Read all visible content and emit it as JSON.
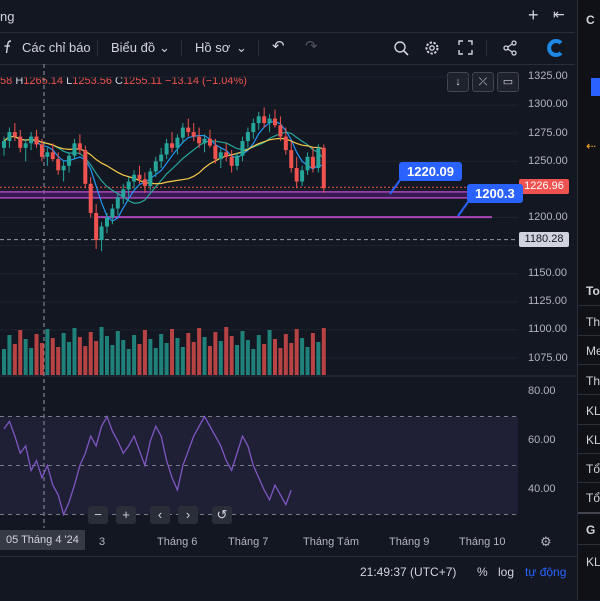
{
  "topbar": {
    "title": "ng",
    "plus_label": "+",
    "expand_label": "⇤"
  },
  "toolbar": {
    "indicators_label": "Các chỉ báo",
    "chart_label": "Biểu đồ",
    "profile_label": "Hồ sơ",
    "fx_icon": "fx-icon",
    "undo_icon": "undo-icon",
    "redo_icon": "redo-icon",
    "search_icon": "zoom-icon",
    "settings_icon": "gear-icon",
    "fullscreen_icon": "fullscreen-icon",
    "share_icon": "share-icon",
    "logo_icon": "brand-logo-icon"
  },
  "ohlc": {
    "o_val": "58",
    "h_key": "H",
    "h_val": "1265.14",
    "l_key": "L",
    "l_val": "1253.56",
    "c_key": "C",
    "c_val": "1255.11",
    "change": "−13.14 (−1.04%)"
  },
  "price_axis": [
    "1325.00",
    "1300.00",
    "1275.00",
    "1250.00",
    "1200.00",
    "1150.00",
    "1125.00",
    "1100.00",
    "1075.00"
  ],
  "last_price": "1226.96",
  "crosshair_price": "1180.28",
  "callouts": {
    "upper": "1220.09",
    "lower": "1200.3"
  },
  "rsi_axis": [
    "80.00",
    "60.00",
    "40.00"
  ],
  "x_axis": {
    "cursor_date": "05 Tháng 4 '24",
    "m3": "3",
    "m6": "Tháng 6",
    "m7": "Tháng 7",
    "m8": "Tháng Tám",
    "m9": "Tháng 9",
    "m10": "Tháng 10"
  },
  "nav": {
    "minus": "−",
    "plus": "+",
    "left": "‹",
    "right": "›",
    "reset": "↺"
  },
  "bottom": {
    "time": "21:49:37 (UTC+7)",
    "pct": "%",
    "log": "log",
    "auto": "tự động"
  },
  "right_panel": {
    "c": "C",
    "t": "To",
    "th1": "Th",
    "me": "Me",
    "th2": "Th",
    "kl1": "KL",
    "kl2": "KL",
    "to1": "Tổ",
    "to2": "Tổ",
    "g": "G",
    "kl3": "KL"
  },
  "colors": {
    "up": "#26a69a",
    "down": "#ef5350",
    "accent": "#2962ff",
    "bg": "#131722"
  },
  "chart_data": {
    "type": "candlestick",
    "price_range": [
      1160,
      1330
    ],
    "last_price": 1226.96,
    "crosshair_price": 1180.28,
    "horizontal_levels": [
      1220.09,
      1200.3
    ],
    "candles_ohlc": [
      [
        1262,
        1272,
        1255,
        1268
      ],
      [
        1268,
        1280,
        1262,
        1276
      ],
      [
        1276,
        1284,
        1268,
        1272
      ],
      [
        1272,
        1278,
        1258,
        1262
      ],
      [
        1262,
        1270,
        1250,
        1266
      ],
      [
        1266,
        1276,
        1260,
        1272
      ],
      [
        1272,
        1278,
        1262,
        1265
      ],
      [
        1265,
        1270,
        1250,
        1254
      ],
      [
        1254,
        1262,
        1246,
        1258
      ],
      [
        1258,
        1266,
        1250,
        1252
      ],
      [
        1252,
        1258,
        1238,
        1242
      ],
      [
        1242,
        1250,
        1232,
        1246
      ],
      [
        1246,
        1258,
        1240,
        1255
      ],
      [
        1255,
        1270,
        1252,
        1266
      ],
      [
        1266,
        1274,
        1256,
        1260
      ],
      [
        1260,
        1264,
        1226,
        1230
      ],
      [
        1230,
        1236,
        1200,
        1204
      ],
      [
        1204,
        1212,
        1172,
        1180
      ],
      [
        1180,
        1196,
        1170,
        1192
      ],
      [
        1192,
        1204,
        1186,
        1200
      ],
      [
        1200,
        1212,
        1194,
        1208
      ],
      [
        1208,
        1222,
        1202,
        1218
      ],
      [
        1218,
        1230,
        1212,
        1225
      ],
      [
        1225,
        1236,
        1218,
        1232
      ],
      [
        1232,
        1242,
        1226,
        1238
      ],
      [
        1238,
        1246,
        1230,
        1234
      ],
      [
        1234,
        1240,
        1222,
        1228
      ],
      [
        1228,
        1244,
        1224,
        1241
      ],
      [
        1241,
        1254,
        1236,
        1250
      ],
      [
        1250,
        1262,
        1244,
        1256
      ],
      [
        1256,
        1270,
        1252,
        1266
      ],
      [
        1266,
        1276,
        1258,
        1262
      ],
      [
        1262,
        1274,
        1256,
        1271
      ],
      [
        1271,
        1284,
        1266,
        1280
      ],
      [
        1280,
        1288,
        1272,
        1276
      ],
      [
        1276,
        1284,
        1268,
        1272
      ],
      [
        1272,
        1280,
        1262,
        1266
      ],
      [
        1266,
        1274,
        1258,
        1270
      ],
      [
        1270,
        1278,
        1262,
        1264
      ],
      [
        1264,
        1270,
        1248,
        1252
      ],
      [
        1252,
        1262,
        1244,
        1258
      ],
      [
        1258,
        1266,
        1250,
        1254
      ],
      [
        1254,
        1260,
        1240,
        1246
      ],
      [
        1246,
        1258,
        1242,
        1255
      ],
      [
        1255,
        1272,
        1250,
        1268
      ],
      [
        1268,
        1280,
        1262,
        1276
      ],
      [
        1276,
        1288,
        1270,
        1284
      ],
      [
        1284,
        1294,
        1278,
        1290
      ],
      [
        1290,
        1298,
        1280,
        1284
      ],
      [
        1284,
        1292,
        1276,
        1288
      ],
      [
        1288,
        1296,
        1280,
        1282
      ],
      [
        1282,
        1290,
        1268,
        1272
      ],
      [
        1272,
        1280,
        1256,
        1260
      ],
      [
        1260,
        1268,
        1240,
        1244
      ],
      [
        1244,
        1254,
        1226,
        1232
      ],
      [
        1232,
        1246,
        1228,
        1242
      ],
      [
        1242,
        1258,
        1238,
        1254
      ],
      [
        1254,
        1262,
        1240,
        1244
      ],
      [
        1244,
        1265,
        1240,
        1262
      ],
      [
        1262,
        1265,
        1222,
        1226
      ]
    ],
    "rsi": [
      65,
      68,
      62,
      55,
      58,
      48,
      52,
      45,
      50,
      42,
      38,
      30,
      35,
      42,
      50,
      55,
      62,
      58,
      66,
      70,
      64,
      60,
      55,
      58,
      62,
      56,
      50,
      60,
      66,
      62,
      52,
      45,
      40,
      50,
      56,
      62,
      66,
      70,
      66,
      62,
      58,
      52,
      48,
      55,
      62,
      58,
      50,
      45,
      40,
      36,
      42,
      38,
      34,
      40
    ]
  }
}
